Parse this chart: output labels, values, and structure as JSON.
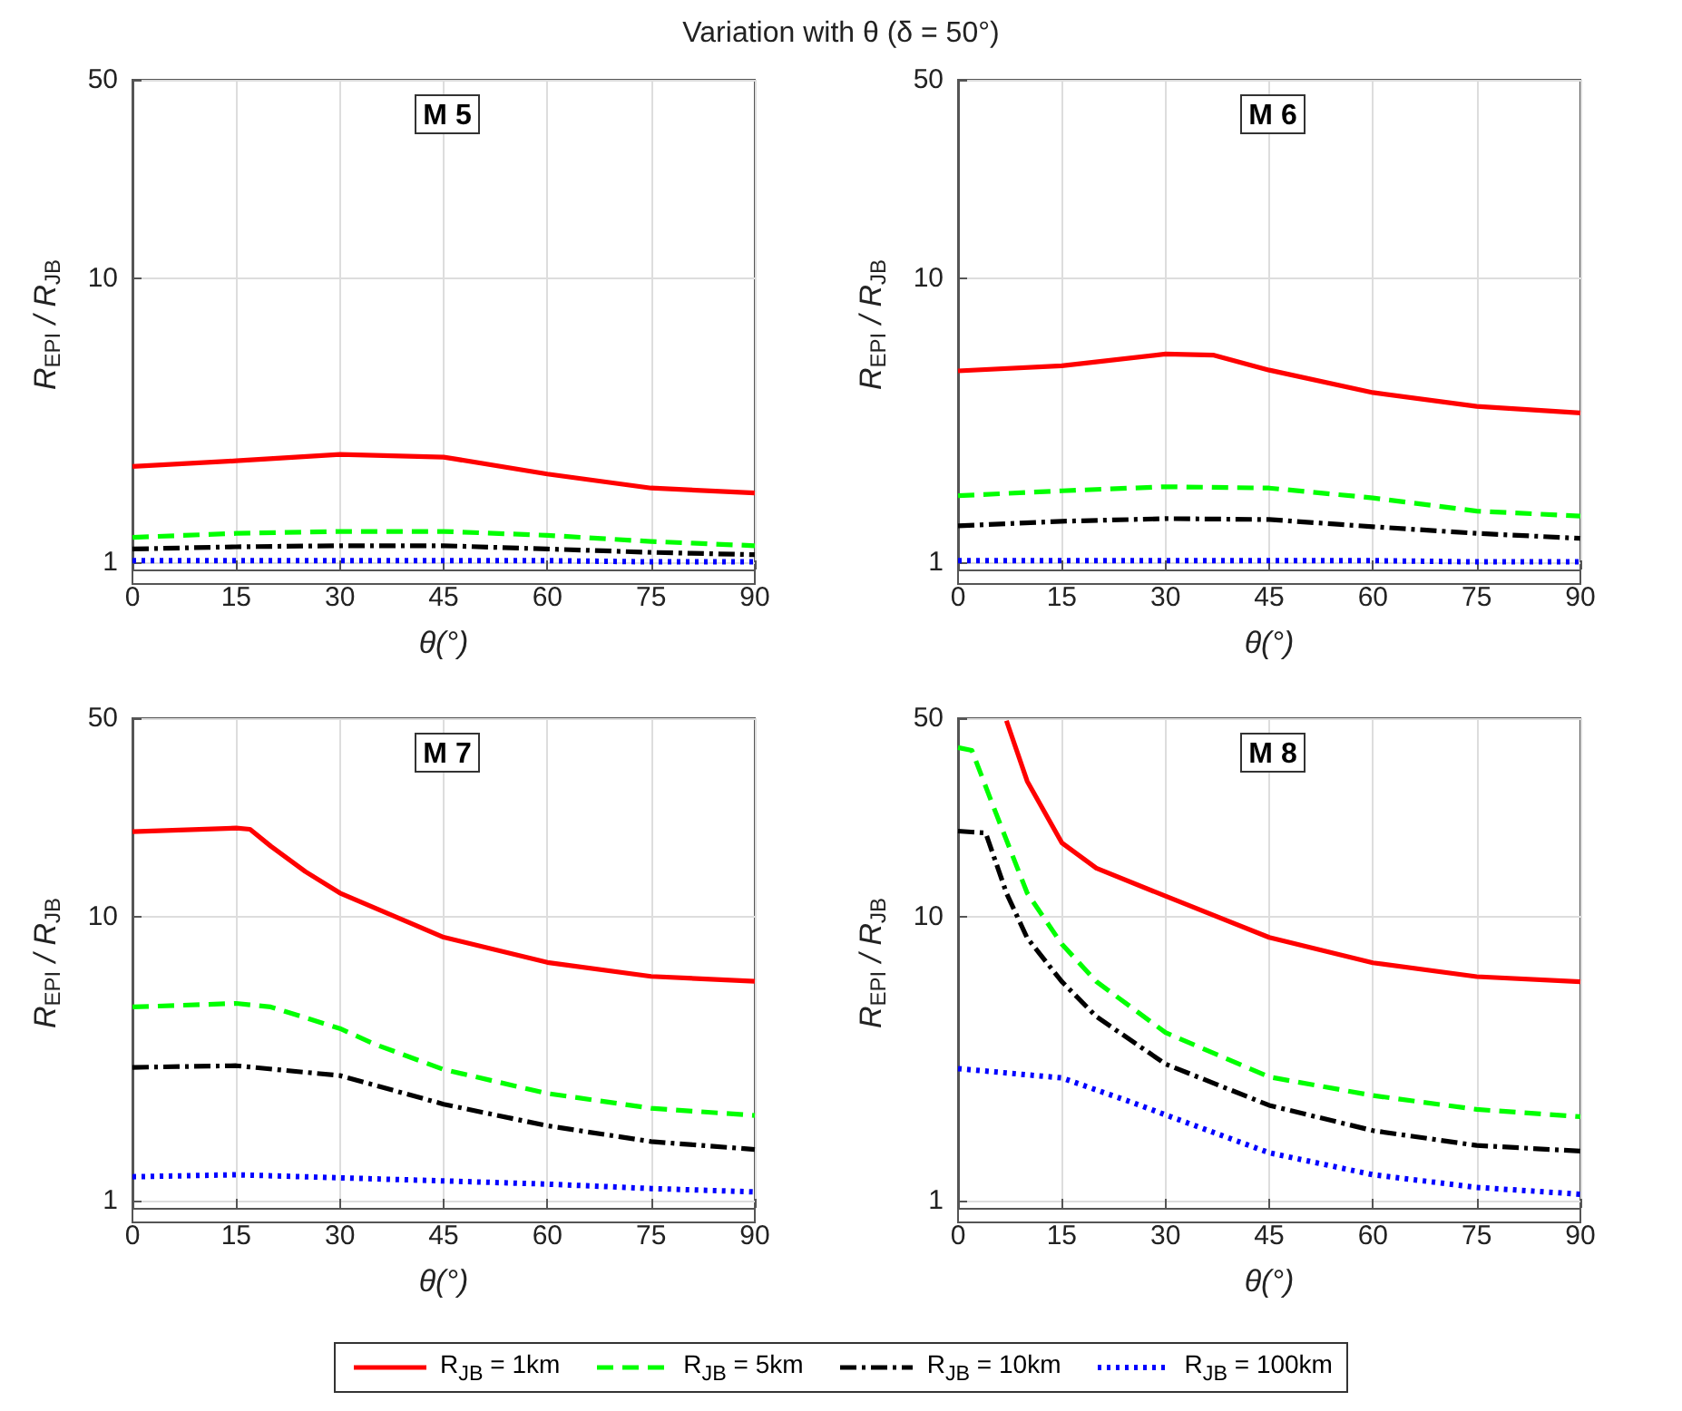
{
  "chart_data": [
    {
      "type": "line",
      "title": "M 5",
      "annotations": [
        "Variation with θ (δ = 50°)"
      ],
      "xlabel": "θ(°)",
      "ylabel": "R$_{EPI}$ / R$_{JB}$",
      "xlim": [
        0,
        90
      ],
      "xticks": [
        0,
        15,
        30,
        45,
        60,
        75,
        90
      ],
      "ylim": [
        0.94,
        50
      ],
      "yticks": [
        1,
        10,
        50
      ],
      "log": "y",
      "grid": true,
      "legend": "bottom",
      "marker": "none",
      "series": [
        {
          "name": "R$_{JB}$ = 1km",
          "color": "#ff0000",
          "line_style": "solid",
          "x": [
            0,
            15,
            30,
            45,
            60,
            75,
            90
          ],
          "values": [
            2.17,
            2.27,
            2.39,
            2.34,
            2.04,
            1.82,
            1.75
          ]
        },
        {
          "name": "R$_{JB}$ = 5km",
          "color": "#00ff00",
          "line_style": "dashed",
          "x": [
            0,
            15,
            30,
            45,
            60,
            75,
            90
          ],
          "values": [
            1.22,
            1.26,
            1.28,
            1.28,
            1.24,
            1.18,
            1.14
          ]
        },
        {
          "name": "R$_{JB}$ = 10km",
          "color": "#000000",
          "line_style": "dashdot",
          "x": [
            0,
            15,
            30,
            45,
            60,
            75,
            90
          ],
          "values": [
            1.11,
            1.13,
            1.14,
            1.14,
            1.11,
            1.08,
            1.06
          ]
        },
        {
          "name": "R$_{JB}$ = 100km",
          "color": "#0000ff",
          "line_style": "dotted",
          "x": [
            0,
            15,
            30,
            45,
            60,
            75,
            90
          ],
          "values": [
            1.01,
            1.01,
            1.01,
            1.01,
            1.01,
            1.0,
            1.0
          ]
        }
      ]
    },
    {
      "type": "line",
      "title": "M 6",
      "xlabel": "θ(°)",
      "ylabel": "R$_{EPI}$ / R$_{JB}$",
      "xlim": [
        0,
        90
      ],
      "xticks": [
        0,
        15,
        30,
        45,
        60,
        75,
        90
      ],
      "ylim": [
        0.94,
        50
      ],
      "yticks": [
        1,
        10,
        50
      ],
      "log": "y",
      "grid": true,
      "marker": "none",
      "series": [
        {
          "color": "#ff0000",
          "line_style": "solid",
          "x": [
            0,
            15,
            30,
            37,
            45,
            60,
            75,
            90
          ],
          "values": [
            4.71,
            4.91,
            5.4,
            5.35,
            4.74,
            3.95,
            3.53,
            3.35
          ]
        },
        {
          "color": "#00ff00",
          "line_style": "dashed",
          "x": [
            0,
            15,
            30,
            45,
            60,
            75,
            90
          ],
          "values": [
            1.71,
            1.78,
            1.84,
            1.82,
            1.68,
            1.51,
            1.45
          ]
        },
        {
          "color": "#000000",
          "line_style": "dashdot",
          "x": [
            0,
            15,
            30,
            45,
            60,
            75,
            90
          ],
          "values": [
            1.34,
            1.39,
            1.42,
            1.41,
            1.33,
            1.26,
            1.21
          ]
        },
        {
          "color": "#0000ff",
          "line_style": "dotted",
          "x": [
            0,
            15,
            30,
            45,
            60,
            75,
            90
          ],
          "values": [
            1.01,
            1.01,
            1.01,
            1.01,
            1.01,
            1.0,
            1.0
          ]
        }
      ]
    },
    {
      "type": "line",
      "title": "M 7",
      "xlabel": "θ(°)",
      "ylabel": "R$_{EPI}$ / R$_{JB}$",
      "xlim": [
        0,
        90
      ],
      "xticks": [
        0,
        15,
        30,
        45,
        60,
        75,
        90
      ],
      "ylim": [
        0.94,
        50
      ],
      "yticks": [
        1,
        10,
        50
      ],
      "log": "y",
      "grid": true,
      "marker": "none",
      "series": [
        {
          "color": "#ff0000",
          "line_style": "solid",
          "x": [
            0,
            15,
            17,
            20,
            25,
            30,
            45,
            60,
            75,
            90
          ],
          "values": [
            19.9,
            20.5,
            20.3,
            17.7,
            14.4,
            12.1,
            8.45,
            6.89,
            6.15,
            5.91
          ]
        },
        {
          "color": "#00ff00",
          "line_style": "dashed",
          "x": [
            0,
            15,
            20,
            30,
            35,
            45,
            60,
            75,
            90
          ],
          "values": [
            4.8,
            4.94,
            4.8,
            4.03,
            3.55,
            2.89,
            2.38,
            2.11,
            1.99
          ]
        },
        {
          "color": "#000000",
          "line_style": "dashdot",
          "x": [
            0,
            15,
            30,
            45,
            60,
            75,
            90
          ],
          "values": [
            2.94,
            2.98,
            2.75,
            2.18,
            1.83,
            1.61,
            1.51
          ]
        },
        {
          "color": "#0000ff",
          "line_style": "dotted",
          "x": [
            0,
            15,
            45,
            60,
            75,
            90
          ],
          "values": [
            1.21,
            1.23,
            1.17,
            1.14,
            1.1,
            1.07
          ]
        }
      ]
    },
    {
      "type": "line",
      "title": "M 8",
      "xlabel": "θ(°)",
      "ylabel": "R$_{EPI}$ / R$_{JB}$",
      "xlim": [
        0,
        90
      ],
      "xticks": [
        0,
        15,
        30,
        45,
        60,
        75,
        90
      ],
      "ylim": [
        0.94,
        50
      ],
      "yticks": [
        1,
        10,
        50
      ],
      "log": "y",
      "grid": true,
      "marker": "none",
      "series": [
        {
          "color": "#ff0000",
          "line_style": "solid",
          "x": [
            7,
            10,
            15,
            20,
            30,
            45,
            60,
            75,
            90
          ],
          "values": [
            49,
            30,
            18.2,
            14.8,
            11.8,
            8.44,
            6.87,
            6.14,
            5.89
          ]
        },
        {
          "color": "#00ff00",
          "line_style": "dashed",
          "x": [
            0,
            2,
            5,
            10,
            15,
            20,
            30,
            45,
            60,
            75,
            90
          ],
          "values": [
            39.4,
            38.5,
            24.8,
            12.1,
            8.0,
            5.9,
            3.9,
            2.72,
            2.34,
            2.09,
            1.97
          ]
        },
        {
          "color": "#000000",
          "line_style": "dashdot",
          "x": [
            0,
            4,
            7,
            10,
            15,
            20,
            30,
            45,
            60,
            75,
            90
          ],
          "values": [
            20,
            19.7,
            12.1,
            8.4,
            5.9,
            4.44,
            3.02,
            2.16,
            1.76,
            1.56,
            1.49
          ]
        },
        {
          "color": "#0000ff",
          "line_style": "dotted",
          "x": [
            0,
            15,
            25,
            30,
            45,
            60,
            75,
            90
          ],
          "values": [
            2.91,
            2.7,
            2.22,
            2.0,
            1.47,
            1.23,
            1.11,
            1.05
          ]
        }
      ]
    }
  ]
}
